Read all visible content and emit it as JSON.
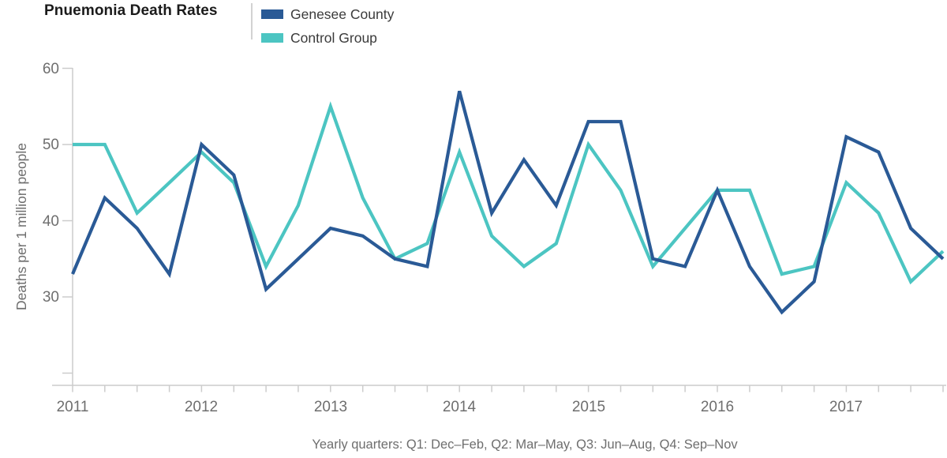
{
  "title": "Pnuemonia Death Rates",
  "legend": {
    "items": [
      {
        "label": "Genesee County",
        "color": "#2a5a96"
      },
      {
        "label": "Control Group",
        "color": "#4cc5c2"
      }
    ]
  },
  "chart_data": {
    "type": "line",
    "title": "Pnuemonia Death Rates",
    "categories": [
      "2011 Q1",
      "2011 Q2",
      "2011 Q3",
      "2011 Q4",
      "2012 Q1",
      "2012 Q2",
      "2012 Q3",
      "2012 Q4",
      "2013 Q1",
      "2013 Q2",
      "2013 Q3",
      "2013 Q4",
      "2014 Q1",
      "2014 Q2",
      "2014 Q3",
      "2014 Q4",
      "2015 Q1",
      "2015 Q2",
      "2015 Q3",
      "2015 Q4",
      "2016 Q1",
      "2016 Q2",
      "2016 Q3",
      "2016 Q4",
      "2017 Q1",
      "2017 Q2",
      "2017 Q3",
      "2017 Q4"
    ],
    "series": [
      {
        "name": "Genesee County",
        "color": "#2a5a96",
        "values": [
          33,
          43,
          39,
          33,
          50,
          46,
          31,
          35,
          39,
          38,
          35,
          34,
          57,
          41,
          48,
          42,
          53,
          53,
          35,
          34,
          44,
          34,
          28,
          32,
          51,
          49,
          39,
          35
        ]
      },
      {
        "name": "Control Group",
        "color": "#4cc5c2",
        "values": [
          50,
          50,
          41,
          45,
          49,
          45,
          34,
          42,
          55,
          43,
          35,
          37,
          49,
          38,
          34,
          37,
          50,
          44,
          34,
          39,
          44,
          44,
          33,
          34,
          45,
          41,
          32,
          36
        ]
      }
    ],
    "ylabel": "Deaths per 1 million people",
    "yticks": [
      60,
      50,
      40,
      30
    ],
    "yticks_unlabeled": [
      20
    ],
    "xticks_years": [
      "2011",
      "2012",
      "2013",
      "2014",
      "2015",
      "2016",
      "2017"
    ],
    "ylim": [
      18.5,
      60
    ],
    "grid": false,
    "legend_position": "top",
    "footnote": "Yearly quarters: Q1: Dec–Feb, Q2: Mar–May, Q3: Jun–Aug, Q4: Sep–Nov"
  }
}
